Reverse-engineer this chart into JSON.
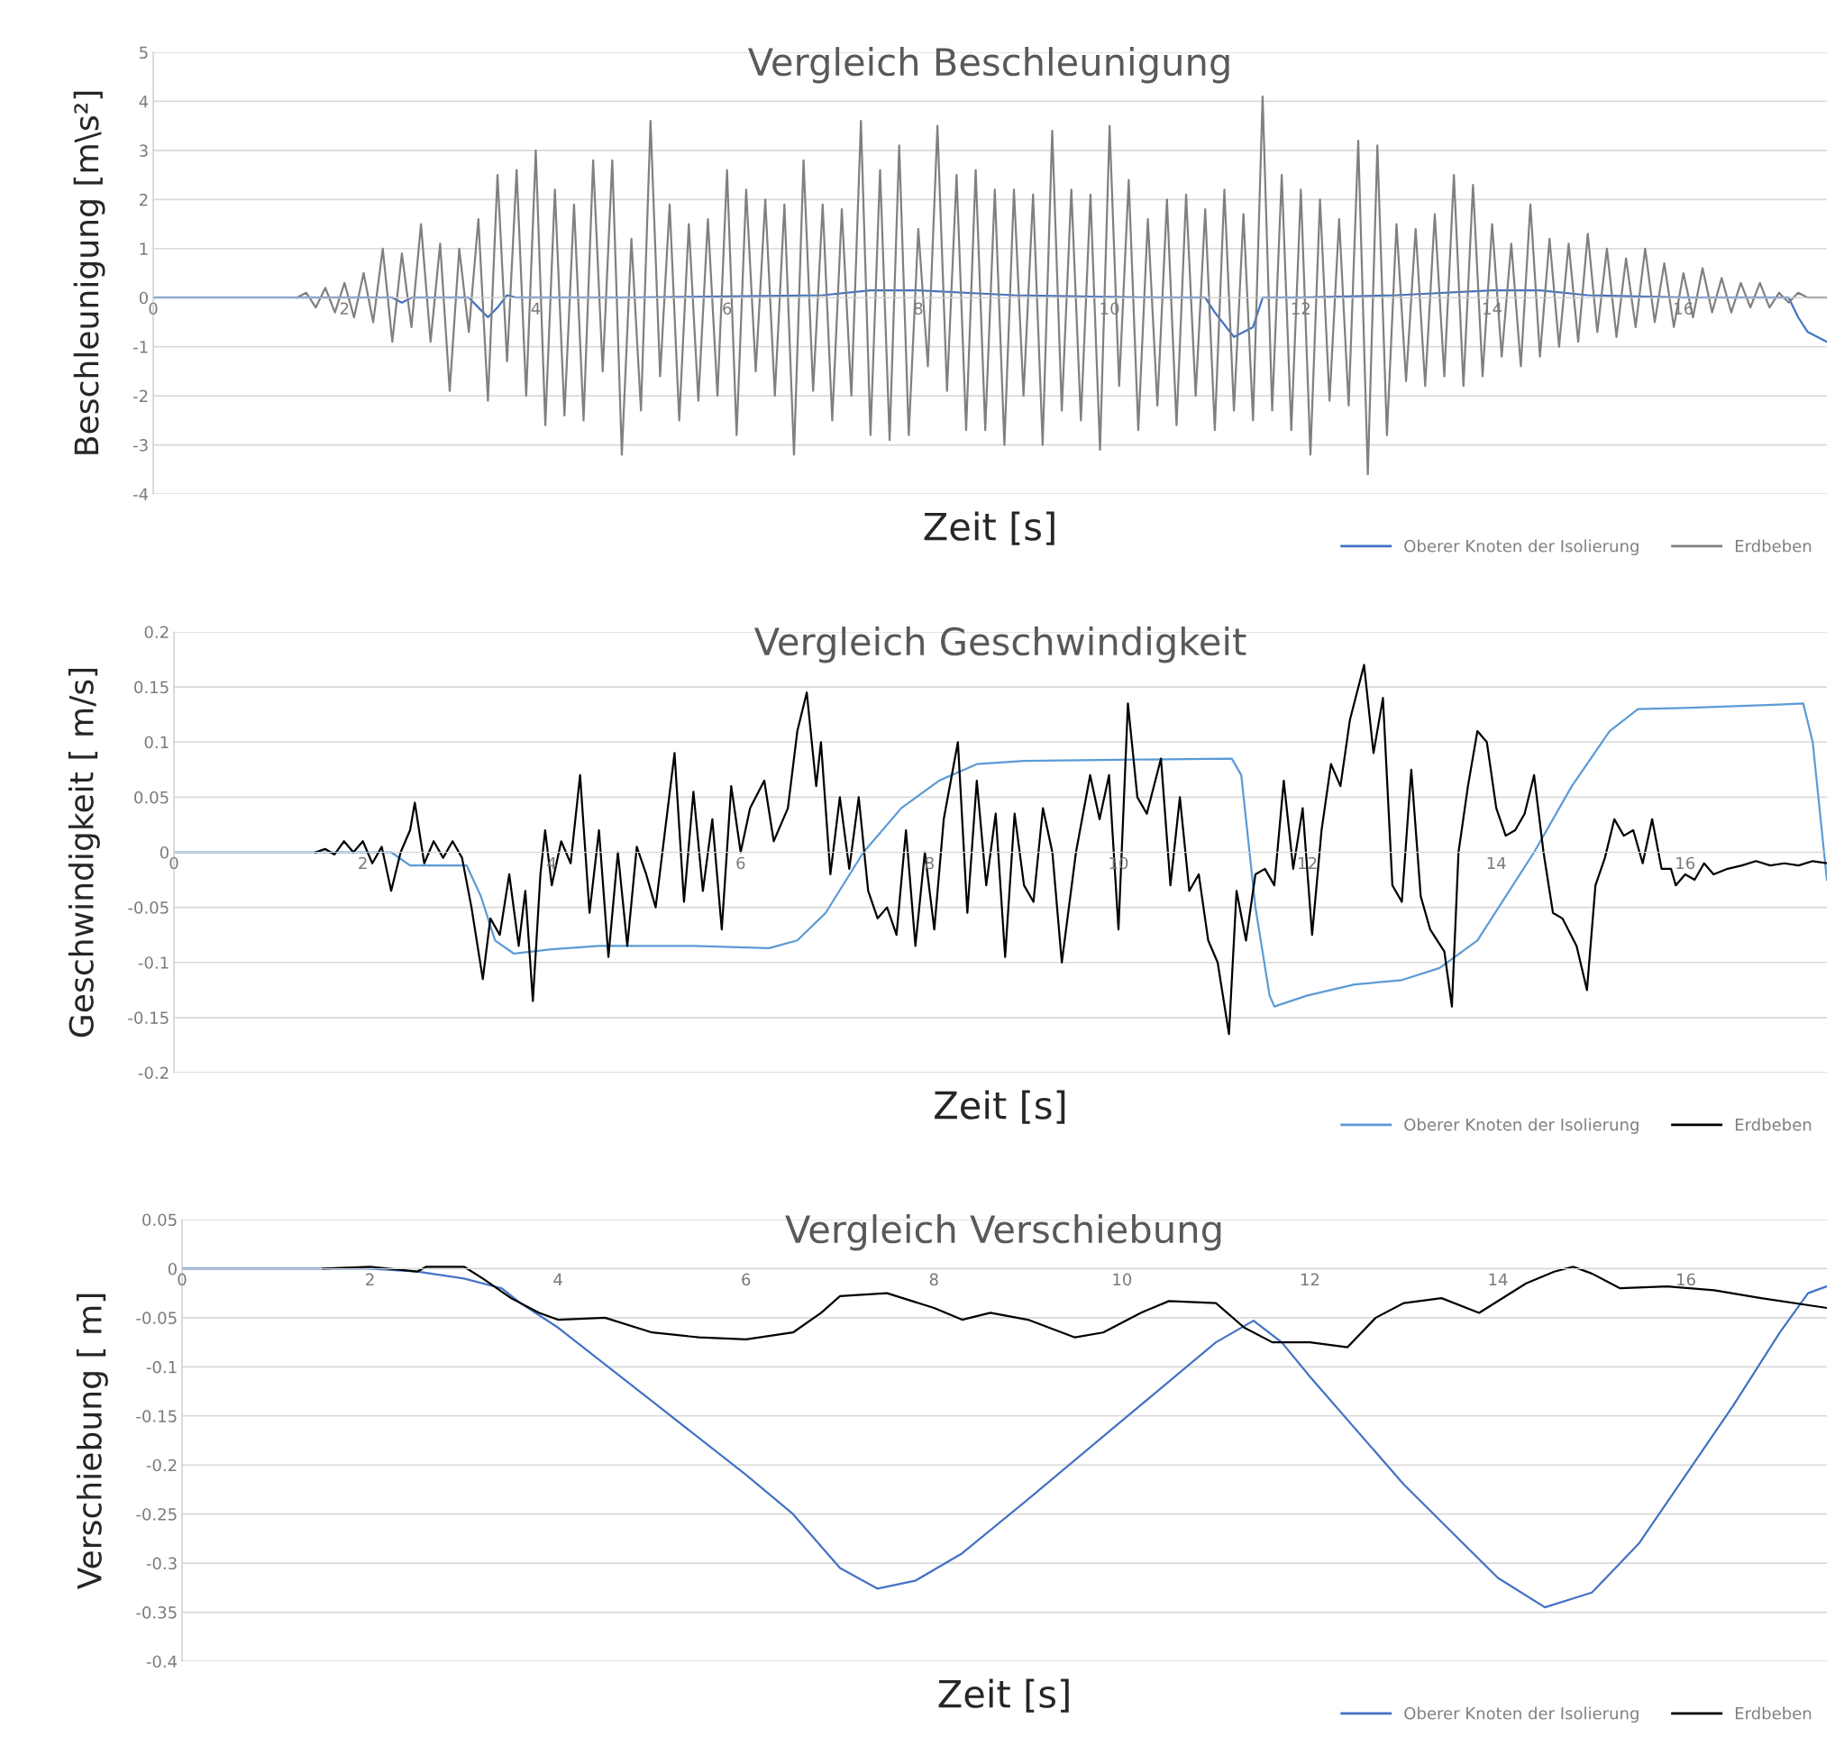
{
  "chart_data": [
    {
      "type": "line",
      "title": "Vergleich Beschleunigung",
      "xlabel": "Zeit [s]",
      "ylabel": "Beschleunigung [m\\s²]",
      "xlim": [
        0,
        17.5
      ],
      "xticks": [
        0,
        2,
        4,
        6,
        8,
        10,
        12,
        14,
        16
      ],
      "ylim": [
        -4,
        5
      ],
      "yticks": [
        -4,
        -3,
        -2,
        -1,
        0,
        1,
        2,
        3,
        4,
        5
      ],
      "grid": "y",
      "legend": "bottom right",
      "marker": "none",
      "line_style": "solid",
      "series": [
        {
          "name": "Oberer Knoten der Isolierung",
          "color": "#4472c4",
          "x": [
            0,
            2.5,
            2.6,
            2.7,
            3.3,
            3.4,
            3.5,
            3.6,
            3.7,
            3.8,
            5,
            7,
            7.5,
            8,
            9,
            10.5,
            11.0,
            11.1,
            11.3,
            11.5,
            11.6,
            12,
            13,
            14,
            14.5,
            15,
            16,
            17.1,
            17.2,
            17.3,
            17.4,
            17.5
          ],
          "values": [
            0,
            0,
            -0.1,
            0,
            0,
            -0.2,
            -0.4,
            -0.2,
            0.05,
            0,
            0,
            0.05,
            0.15,
            0.15,
            0.05,
            0,
            0,
            -0.3,
            -0.8,
            -0.6,
            0,
            0,
            0.05,
            0.15,
            0.15,
            0.05,
            0,
            0,
            -0.4,
            -0.7,
            -0.8,
            -0.9
          ]
        },
        {
          "name": "Erdbeben",
          "color": "#808080",
          "x": [
            1.5,
            1.6,
            1.7,
            1.8,
            1.9,
            2.0,
            2.1,
            2.2,
            2.3,
            2.4,
            2.5,
            2.6,
            2.7,
            2.8,
            2.9,
            3.0,
            3.1,
            3.2,
            3.3,
            3.4,
            3.5,
            3.6,
            3.7,
            3.8,
            3.9,
            4.0,
            4.1,
            4.2,
            4.3,
            4.4,
            4.5,
            4.6,
            4.7,
            4.8,
            4.9,
            5.0,
            5.1,
            5.2,
            5.3,
            5.4,
            5.5,
            5.6,
            5.7,
            5.8,
            5.9,
            6.0,
            6.1,
            6.2,
            6.3,
            6.4,
            6.5,
            6.6,
            6.7,
            6.8,
            6.9,
            7.0,
            7.1,
            7.2,
            7.3,
            7.4,
            7.5,
            7.6,
            7.7,
            7.8,
            7.9,
            8.0,
            8.1,
            8.2,
            8.3,
            8.4,
            8.5,
            8.6,
            8.7,
            8.8,
            8.9,
            9.0,
            9.1,
            9.2,
            9.3,
            9.4,
            9.5,
            9.6,
            9.7,
            9.8,
            9.9,
            10.0,
            10.1,
            10.2,
            10.3,
            10.4,
            10.5,
            10.6,
            10.7,
            10.8,
            10.9,
            11.0,
            11.1,
            11.2,
            11.3,
            11.4,
            11.5,
            11.6,
            11.7,
            11.8,
            11.9,
            12.0,
            12.1,
            12.2,
            12.3,
            12.4,
            12.5,
            12.6,
            12.7,
            12.8,
            12.9,
            13.0,
            13.1,
            13.2,
            13.3,
            13.4,
            13.5,
            13.6,
            13.7,
            13.8,
            13.9,
            14.0,
            14.1,
            14.2,
            14.3,
            14.4,
            14.5,
            14.6,
            14.7,
            14.8,
            14.9,
            15.0,
            15.1,
            15.2,
            15.3,
            15.4,
            15.5,
            15.6,
            15.7,
            15.8,
            15.9,
            16.0,
            16.1,
            16.2,
            16.3,
            16.4,
            16.5,
            16.6,
            16.7,
            16.8,
            16.9,
            17.0,
            17.1,
            17.2,
            17.3,
            17.5
          ],
          "values": [
            0,
            0.1,
            -0.2,
            0.2,
            -0.3,
            0.3,
            -0.4,
            0.5,
            -0.5,
            1.0,
            -0.9,
            0.9,
            -0.6,
            1.5,
            -0.9,
            1.1,
            -1.9,
            1.0,
            -0.7,
            1.6,
            -2.1,
            2.5,
            -1.3,
            2.6,
            -2.0,
            3.0,
            -2.6,
            2.2,
            -2.4,
            1.9,
            -2.5,
            2.8,
            -1.5,
            2.8,
            -3.2,
            1.2,
            -2.3,
            3.6,
            -1.6,
            1.9,
            -2.5,
            1.5,
            -2.1,
            1.6,
            -2.0,
            2.6,
            -2.8,
            2.2,
            -1.5,
            2.0,
            -2.0,
            1.9,
            -3.2,
            2.8,
            -1.9,
            1.9,
            -2.5,
            1.8,
            -2.0,
            3.6,
            -2.8,
            2.6,
            -2.9,
            3.1,
            -2.8,
            1.4,
            -1.4,
            3.5,
            -1.9,
            2.5,
            -2.7,
            2.6,
            -2.7,
            2.2,
            -3.0,
            2.2,
            -2.0,
            2.1,
            -3.0,
            3.4,
            -2.3,
            2.2,
            -2.5,
            2.1,
            -3.1,
            3.5,
            -1.8,
            2.4,
            -2.7,
            1.6,
            -2.2,
            2.0,
            -2.6,
            2.1,
            -2.0,
            1.8,
            -2.7,
            2.2,
            -2.3,
            1.7,
            -2.5,
            4.1,
            -2.3,
            2.5,
            -2.7,
            2.2,
            -3.2,
            2.0,
            -2.1,
            1.6,
            -2.2,
            3.2,
            -3.6,
            3.1,
            -2.8,
            1.5,
            -1.7,
            1.4,
            -1.8,
            1.7,
            -1.6,
            2.5,
            -1.8,
            2.3,
            -1.6,
            1.5,
            -1.2,
            1.1,
            -1.4,
            1.9,
            -1.2,
            1.2,
            -1.0,
            1.1,
            -0.9,
            1.3,
            -0.7,
            1.0,
            -0.8,
            0.8,
            -0.6,
            1.0,
            -0.5,
            0.7,
            -0.6,
            0.5,
            -0.4,
            0.6,
            -0.3,
            0.4,
            -0.3,
            0.3,
            -0.2,
            0.3,
            -0.2,
            0.1,
            -0.1,
            0.1,
            0.0,
            0.0
          ]
        }
      ]
    },
    {
      "type": "line",
      "title": "Vergleich Geschwindigkeit",
      "xlabel": "Zeit [s]",
      "ylabel": "Geschwindigkeit [ m/s]",
      "xlim": [
        0,
        17.5
      ],
      "xticks": [
        0,
        2,
        4,
        6,
        8,
        10,
        12,
        14,
        16
      ],
      "ylim": [
        -0.2,
        0.2
      ],
      "yticks": [
        -0.2,
        -0.15,
        -0.1,
        -0.05,
        0,
        0.05,
        0.1,
        0.15,
        0.2
      ],
      "grid": "y",
      "legend": "bottom right",
      "marker": "none",
      "line_style": "solid",
      "series": [
        {
          "name": "Oberer Knoten der Isolierung",
          "color": "#5b9bd5",
          "x": [
            0,
            2.3,
            2.5,
            3.1,
            3.25,
            3.4,
            3.6,
            4.0,
            4.5,
            5.5,
            6.3,
            6.6,
            6.9,
            7.3,
            7.7,
            8.1,
            8.5,
            9.0,
            10,
            11.2,
            11.3,
            11.45,
            11.6,
            11.65,
            12.0,
            12.5,
            13.0,
            13.4,
            13.8,
            14.1,
            14.4,
            14.8,
            15.2,
            15.5,
            16.0,
            17.0,
            17.25,
            17.35,
            17.5
          ],
          "values": [
            0,
            0,
            -0.012,
            -0.012,
            -0.04,
            -0.08,
            -0.092,
            -0.088,
            -0.085,
            -0.085,
            -0.087,
            -0.08,
            -0.055,
            0.0,
            0.04,
            0.065,
            0.08,
            0.083,
            0.084,
            0.085,
            0.07,
            -0.05,
            -0.13,
            -0.14,
            -0.13,
            -0.12,
            -0.116,
            -0.105,
            -0.08,
            -0.04,
            0.0,
            0.06,
            0.11,
            0.13,
            0.131,
            0.134,
            0.135,
            0.1,
            -0.025
          ]
        },
        {
          "name": "Erdbeben",
          "color": "#000000",
          "x": [
            1.5,
            1.6,
            1.7,
            1.8,
            1.9,
            2.0,
            2.1,
            2.2,
            2.3,
            2.4,
            2.5,
            2.55,
            2.65,
            2.75,
            2.85,
            2.95,
            3.05,
            3.15,
            3.27,
            3.35,
            3.45,
            3.55,
            3.65,
            3.72,
            3.8,
            3.88,
            3.93,
            4.0,
            4.1,
            4.2,
            4.3,
            4.4,
            4.5,
            4.6,
            4.7,
            4.8,
            4.9,
            5.0,
            5.1,
            5.3,
            5.4,
            5.5,
            5.6,
            5.7,
            5.8,
            5.9,
            6.0,
            6.1,
            6.25,
            6.35,
            6.5,
            6.6,
            6.7,
            6.8,
            6.85,
            6.95,
            7.05,
            7.15,
            7.25,
            7.35,
            7.45,
            7.55,
            7.65,
            7.75,
            7.85,
            7.95,
            8.05,
            8.15,
            8.3,
            8.4,
            8.5,
            8.6,
            8.7,
            8.8,
            8.9,
            9.0,
            9.1,
            9.2,
            9.3,
            9.4,
            9.55,
            9.7,
            9.8,
            9.9,
            10.0,
            10.1,
            10.2,
            10.3,
            10.45,
            10.55,
            10.65,
            10.75,
            10.85,
            10.95,
            11.05,
            11.17,
            11.25,
            11.35,
            11.45,
            11.55,
            11.65,
            11.75,
            11.85,
            11.95,
            12.05,
            12.15,
            12.25,
            12.35,
            12.45,
            12.6,
            12.7,
            12.8,
            12.9,
            13.0,
            13.1,
            13.2,
            13.3,
            13.45,
            13.53,
            13.6,
            13.7,
            13.8,
            13.9,
            14.0,
            14.1,
            14.2,
            14.3,
            14.4,
            14.5,
            14.6,
            14.7,
            14.85,
            14.96,
            15.05,
            15.15,
            15.25,
            15.35,
            15.45,
            15.55,
            15.65,
            15.75,
            15.85,
            15.9,
            16.0,
            16.1,
            16.2,
            16.3,
            16.45,
            16.6,
            16.75,
            16.9,
            17.05,
            17.2,
            17.35,
            17.5
          ],
          "values": [
            0,
            0.003,
            -0.002,
            0.01,
            0.0,
            0.01,
            -0.01,
            0.005,
            -0.035,
            0.0,
            0.02,
            0.045,
            -0.01,
            0.01,
            -0.005,
            0.01,
            -0.005,
            -0.05,
            -0.115,
            -0.06,
            -0.075,
            -0.02,
            -0.085,
            -0.035,
            -0.135,
            -0.02,
            0.02,
            -0.03,
            0.01,
            -0.01,
            0.07,
            -0.055,
            0.02,
            -0.095,
            0.0,
            -0.085,
            0.005,
            -0.02,
            -0.05,
            0.09,
            -0.045,
            0.055,
            -0.035,
            0.03,
            -0.07,
            0.06,
            0.0,
            0.04,
            0.065,
            0.01,
            0.04,
            0.11,
            0.145,
            0.06,
            0.1,
            -0.02,
            0.05,
            -0.015,
            0.05,
            -0.035,
            -0.06,
            -0.05,
            -0.075,
            0.02,
            -0.085,
            0.0,
            -0.07,
            0.03,
            0.1,
            -0.055,
            0.065,
            -0.03,
            0.035,
            -0.095,
            0.035,
            -0.03,
            -0.045,
            0.04,
            0.0,
            -0.1,
            0.0,
            0.07,
            0.03,
            0.07,
            -0.07,
            0.135,
            0.05,
            0.035,
            0.085,
            -0.03,
            0.05,
            -0.035,
            -0.02,
            -0.08,
            -0.1,
            -0.165,
            -0.035,
            -0.08,
            -0.02,
            -0.015,
            -0.03,
            0.065,
            -0.015,
            0.04,
            -0.075,
            0.02,
            0.08,
            0.06,
            0.12,
            0.17,
            0.09,
            0.14,
            -0.03,
            -0.045,
            0.075,
            -0.04,
            -0.07,
            -0.09,
            -0.14,
            0.0,
            0.06,
            0.11,
            0.1,
            0.04,
            0.015,
            0.02,
            0.035,
            0.07,
            0.0,
            -0.055,
            -0.06,
            -0.085,
            -0.125,
            -0.03,
            -0.005,
            0.03,
            0.015,
            0.02,
            -0.01,
            0.03,
            -0.015,
            -0.015,
            -0.03,
            -0.02,
            -0.025,
            -0.01,
            -0.02,
            -0.015,
            -0.012,
            -0.008,
            -0.012,
            -0.01,
            -0.012,
            -0.008,
            -0.01
          ]
        }
      ]
    },
    {
      "type": "line",
      "title": "Vergleich Verschiebung",
      "xlabel": "Zeit [s]",
      "ylabel": "Verschiebung [ m]",
      "xlim": [
        0,
        17.5
      ],
      "xticks": [
        0,
        2,
        4,
        6,
        8,
        10,
        12,
        14,
        16
      ],
      "ylim": [
        -0.4,
        0.05
      ],
      "yticks": [
        -0.4,
        -0.35,
        -0.3,
        -0.25,
        -0.2,
        -0.15,
        -0.1,
        -0.05,
        0,
        0.05
      ],
      "grid": "y",
      "legend": "bottom right",
      "marker": "none",
      "line_style": "solid",
      "series": [
        {
          "name": "Oberer Knoten der Isolierung",
          "color": "#4472c4",
          "x": [
            0,
            2.0,
            2.5,
            3.0,
            3.4,
            3.6,
            4.0,
            5.0,
            6.0,
            6.5,
            7.0,
            7.4,
            7.8,
            8.3,
            9.0,
            10.0,
            11.0,
            11.4,
            11.7,
            12.0,
            13.0,
            14.0,
            14.5,
            15.0,
            15.5,
            16.0,
            16.5,
            17.0,
            17.3,
            17.5
          ],
          "values": [
            0,
            0,
            -0.003,
            -0.01,
            -0.02,
            -0.035,
            -0.06,
            -0.135,
            -0.21,
            -0.25,
            -0.305,
            -0.326,
            -0.318,
            -0.29,
            -0.235,
            -0.155,
            -0.075,
            -0.053,
            -0.075,
            -0.11,
            -0.22,
            -0.315,
            -0.345,
            -0.33,
            -0.28,
            -0.21,
            -0.14,
            -0.065,
            -0.025,
            -0.018
          ]
        },
        {
          "name": "Erdbeben",
          "color": "#000000",
          "x": [
            1.5,
            2.0,
            2.5,
            2.6,
            3.0,
            3.2,
            3.5,
            3.8,
            4.0,
            4.5,
            5.0,
            5.5,
            6.0,
            6.5,
            6.8,
            7.0,
            7.5,
            8.0,
            8.3,
            8.6,
            9.0,
            9.5,
            9.8,
            10.2,
            10.5,
            11.0,
            11.3,
            11.6,
            12.0,
            12.4,
            12.7,
            13.0,
            13.4,
            13.8,
            14.3,
            14.6,
            14.8,
            15.0,
            15.3,
            15.8,
            16.3,
            16.8,
            17.5
          ],
          "values": [
            0,
            0.002,
            -0.003,
            0.002,
            0.002,
            -0.01,
            -0.03,
            -0.045,
            -0.052,
            -0.05,
            -0.065,
            -0.07,
            -0.072,
            -0.065,
            -0.045,
            -0.028,
            -0.025,
            -0.04,
            -0.052,
            -0.045,
            -0.052,
            -0.07,
            -0.065,
            -0.045,
            -0.033,
            -0.035,
            -0.06,
            -0.075,
            -0.075,
            -0.08,
            -0.05,
            -0.035,
            -0.03,
            -0.045,
            -0.015,
            -0.003,
            0.002,
            -0.005,
            -0.02,
            -0.018,
            -0.022,
            -0.03,
            -0.04
          ]
        }
      ]
    }
  ]
}
